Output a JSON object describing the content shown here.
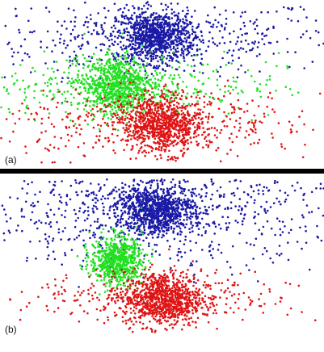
{
  "colors": {
    "background": "#ffffff",
    "divider": "#000000",
    "cluster_blue": "#1a1aa6",
    "cluster_green": "#22e022",
    "cluster_red": "#e01414"
  },
  "chart_data": [
    {
      "type": "scatter",
      "panel_label": "(a)",
      "title": "",
      "xlabel": "",
      "ylabel": "",
      "axes_visible": false,
      "grid": false,
      "legend": "none",
      "xlim": [
        0,
        100
      ],
      "ylim": [
        0,
        100
      ],
      "series": [
        {
          "color": "#1a1aa6",
          "center": [
            48,
            78
          ],
          "spread_core": [
            6,
            8
          ],
          "spread_halo": [
            28,
            12
          ],
          "points_core": 900,
          "points_halo": 500
        },
        {
          "color": "#22e022",
          "center": [
            36,
            48
          ],
          "spread_core": [
            5,
            9
          ],
          "spread_halo": [
            25,
            10
          ],
          "points_core": 800,
          "points_halo": 450
        },
        {
          "color": "#e01414",
          "center": [
            50,
            24
          ],
          "spread_core": [
            6,
            9
          ],
          "spread_halo": [
            25,
            10
          ],
          "points_core": 800,
          "points_halo": 450
        }
      ]
    },
    {
      "type": "scatter",
      "panel_label": "(b)",
      "title": "",
      "xlabel": "",
      "ylabel": "",
      "axes_visible": false,
      "grid": false,
      "legend": "none",
      "xlim": [
        0,
        100
      ],
      "ylim": [
        0,
        100
      ],
      "series": [
        {
          "color": "#1a1aa6",
          "center": [
            48,
            80
          ],
          "spread_core": [
            6,
            8
          ],
          "spread_halo": [
            30,
            18
          ],
          "points_core": 900,
          "points_halo": 900
        },
        {
          "color": "#22e022",
          "center": [
            36,
            47
          ],
          "spread_core": [
            4,
            8
          ],
          "spread_halo": [
            0,
            0
          ],
          "points_core": 700,
          "points_halo": 0
        },
        {
          "color": "#e01414",
          "center": [
            50,
            22
          ],
          "spread_core": [
            6,
            9
          ],
          "spread_halo": [
            20,
            8
          ],
          "points_core": 850,
          "points_halo": 350
        }
      ]
    }
  ]
}
